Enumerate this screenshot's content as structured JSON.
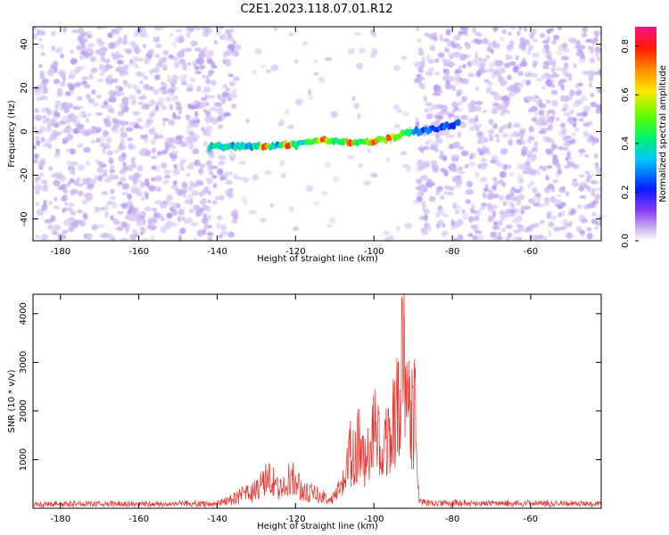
{
  "figure": {
    "title": "C2E1.2023.118.07.01.R12"
  },
  "colors": {
    "snr_line": "#e8332d",
    "colormap": [
      "#ffffff",
      "#c9b3f0",
      "#8a3cf5",
      "#6a00e0",
      "#0a1cff",
      "#00c8ff",
      "#00f26a",
      "#5cff00",
      "#ffe600",
      "#ff8a00",
      "#ff1a00",
      "#ff1088"
    ]
  },
  "chart_data": [
    {
      "type": "heatmap",
      "xlabel": "Height of straight line (km)",
      "ylabel": "Frequency (Hz)",
      "xlim": [
        -187,
        -42
      ],
      "ylim": [
        -50,
        48
      ],
      "x_ticks": [
        -180,
        -160,
        -140,
        -120,
        -100,
        -80,
        -60
      ],
      "y_ticks": [
        -40,
        -20,
        0,
        20,
        40
      ],
      "colorbar": {
        "label": "Normalized spectral amplitude",
        "range": [
          0,
          0.88
        ],
        "ticks": [
          0.0,
          0.2,
          0.4,
          0.6,
          0.8
        ]
      },
      "signal_band": {
        "description_points_km_hz": [
          [
            -142,
            -7
          ],
          [
            -130,
            -7
          ],
          [
            -120,
            -6
          ],
          [
            -112,
            -4
          ],
          [
            -105,
            -5
          ],
          [
            -98,
            -4
          ],
          [
            -90,
            0
          ],
          [
            -85,
            1
          ],
          [
            -78,
            4
          ]
        ],
        "band_width_hz": 6,
        "peak_amplitude": 0.88,
        "peak_locations_km": [
          -128,
          -122,
          -113,
          -106,
          -100,
          -96
        ]
      },
      "noise_regions_km": [
        [
          -187,
          -135
        ],
        [
          -89,
          -42
        ]
      ],
      "quiet_region_km": [
        -135,
        -89
      ]
    },
    {
      "type": "line",
      "xlabel": "Height of straight line (km)",
      "ylabel": "SNR (10 * v/v)",
      "xlim": [
        -187,
        -42
      ],
      "ylim": [
        0,
        4400
      ],
      "x_ticks": [
        -180,
        -160,
        -140,
        -120,
        -100,
        -80,
        -60
      ],
      "y_ticks": [
        1000,
        2000,
        3000,
        4000
      ],
      "series": [
        {
          "color": "#e8332d",
          "envelope": [
            [
              -187,
              130
            ],
            [
              -140,
              140
            ],
            [
              -136,
              300
            ],
            [
              -130,
              550
            ],
            [
              -127,
              950
            ],
            [
              -124,
              550
            ],
            [
              -121,
              950
            ],
            [
              -118,
              500
            ],
            [
              -115,
              450
            ],
            [
              -111,
              250
            ],
            [
              -108,
              700
            ],
            [
              -106,
              1700
            ],
            [
              -104,
              2050
            ],
            [
              -102,
              1300
            ],
            [
              -100,
              2400
            ],
            [
              -98,
              1600
            ],
            [
              -96,
              2300
            ],
            [
              -94,
              3100
            ],
            [
              -92.5,
              4300
            ],
            [
              -91,
              2700
            ],
            [
              -89.5,
              3300
            ],
            [
              -88.5,
              300
            ],
            [
              -87,
              150
            ],
            [
              -42,
              140
            ]
          ]
        }
      ]
    }
  ]
}
